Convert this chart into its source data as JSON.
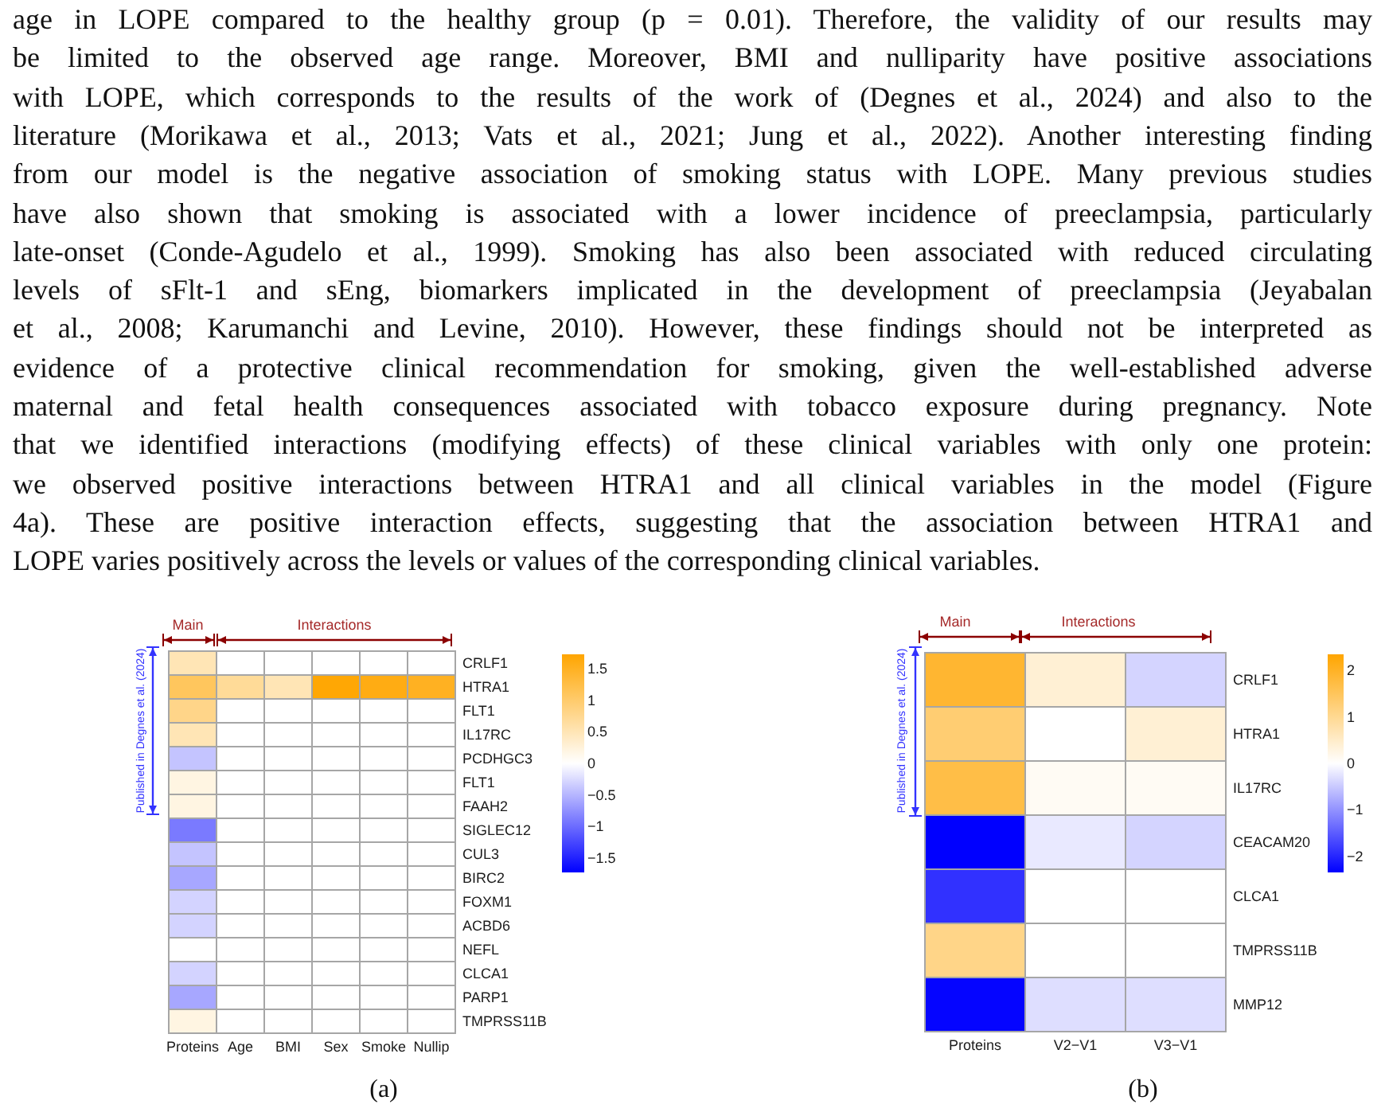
{
  "chart_data": [
    {
      "type": "other",
      "annotations": [
        "age in LOPE compared to the healthy group (p = 0.01). Therefore, the validity of our results may",
        "be limited to the observed age range. Moreover, BMI and nulliparity have positive associations",
        "with LOPE, which corresponds to the results of the work of (Degnes et al., 2024) and also to the",
        "literature (Morikawa et al., 2013; Vats et al., 2021; Jung et al., 2022). Another interesting finding",
        "from our model is the negative association of smoking status with LOPE. Many previous studies",
        "have also shown that smoking is associated with a lower incidence of preeclampsia, particularly",
        "late-onset (Conde-Agudelo et al., 1999). Smoking has also been associated with reduced circulating",
        "levels of sFlt-1 and sEng, biomarkers implicated in the development of preeclampsia (Jeyabalan",
        "et al., 2008; Karumanchi and Levine, 2010). However, these findings should not be interpreted as",
        "evidence of a protective clinical recommendation for smoking, given the well-established adverse",
        "maternal and fetal health consequences associated with tobacco exposure during pregnancy. Note",
        "that we identified interactions (modifying effects) of these clinical variables with only one protein:",
        "we observed positive interactions between HTRA1 and all clinical variables in the model (Figure",
        "4a). These are positive interaction effects, suggesting that the association between HTRA1 and",
        "LOPE varies positively across the levels or values of the corresponding clinical variables."
      ]
    },
    {
      "type": "heatmap",
      "categories": [
        "Proteins",
        "Age",
        "BMI",
        "Sex",
        "Smoke",
        "Nullip"
      ],
      "y_categories": [
        "CRLF1",
        "HTRA1",
        "FLT1",
        "IL17RC",
        "PCDHGC3",
        "FLT1",
        "FAAH2",
        "SIGLEC12",
        "CUL3",
        "BIRC2",
        "FOXM1",
        "ACBD6",
        "NEFL",
        "CLCA1",
        "PARP1",
        "TMPRSS11B"
      ],
      "cells": [
        [
          0.5,
          0,
          0,
          0,
          0,
          0
        ],
        [
          1.1,
          0.7,
          0.5,
          1.7,
          1.6,
          1.5
        ],
        [
          0.8,
          0,
          0,
          0,
          0,
          0
        ],
        [
          0.5,
          0,
          0,
          0,
          0,
          0
        ],
        [
          -0.4,
          0,
          0,
          0,
          0,
          0
        ],
        [
          0.2,
          0,
          0,
          0,
          0,
          0
        ],
        [
          0.2,
          0,
          0,
          0,
          0,
          0
        ],
        [
          -0.9,
          0,
          0,
          0,
          0,
          0
        ],
        [
          -0.4,
          0,
          0,
          0,
          0,
          0
        ],
        [
          -0.6,
          0,
          0,
          0,
          0,
          0
        ],
        [
          -0.3,
          0,
          0,
          0,
          0,
          0
        ],
        [
          -0.3,
          0,
          0,
          0,
          0,
          0
        ],
        [
          0,
          0,
          0,
          0,
          0,
          0
        ],
        [
          -0.3,
          0,
          0,
          0,
          0,
          0
        ],
        [
          -0.6,
          0,
          0,
          0,
          0,
          0
        ],
        [
          0.2,
          0,
          0,
          0,
          0,
          0
        ]
      ],
      "clim": [
        -1.73,
        1.73
      ],
      "cticks": [
        1.5,
        1,
        0.5,
        0,
        {
          "value": -0.5,
          "label": "−0.5"
        },
        {
          "value": -1,
          "label": "−1"
        },
        {
          "value": -1.5,
          "label": "−1.5"
        }
      ],
      "annotations": [
        "Main",
        "Interactions",
        "Published in Degnes et al. (2024)",
        "(a)"
      ]
    },
    {
      "type": "heatmap",
      "categories": [
        "Proteins",
        "V2−V1",
        "V3−V1"
      ],
      "y_categories": [
        "CRLF1",
        "HTRA1",
        "IL17RC",
        "CEACAM20",
        "CLCA1",
        "TMPRSS11B",
        "MMP12"
      ],
      "cells": [
        [
          1.9,
          0.4,
          -0.4
        ],
        [
          1.3,
          0,
          0.4
        ],
        [
          1.7,
          0.1,
          0.1
        ],
        [
          -2.35,
          -0.2,
          -0.4
        ],
        [
          -1.9,
          0,
          0
        ],
        [
          1.1,
          0,
          0
        ],
        [
          -2.3,
          -0.3,
          -0.3
        ]
      ],
      "clim": [
        -2.35,
        2.35
      ],
      "cticks": [
        2,
        1,
        0,
        {
          "value": -1,
          "label": "−1"
        },
        {
          "value": -2,
          "label": "−2"
        }
      ],
      "annotations": [
        "Main",
        "Interactions",
        "Published in Degnes et al. (2024)",
        "(b)"
      ]
    }
  ]
}
